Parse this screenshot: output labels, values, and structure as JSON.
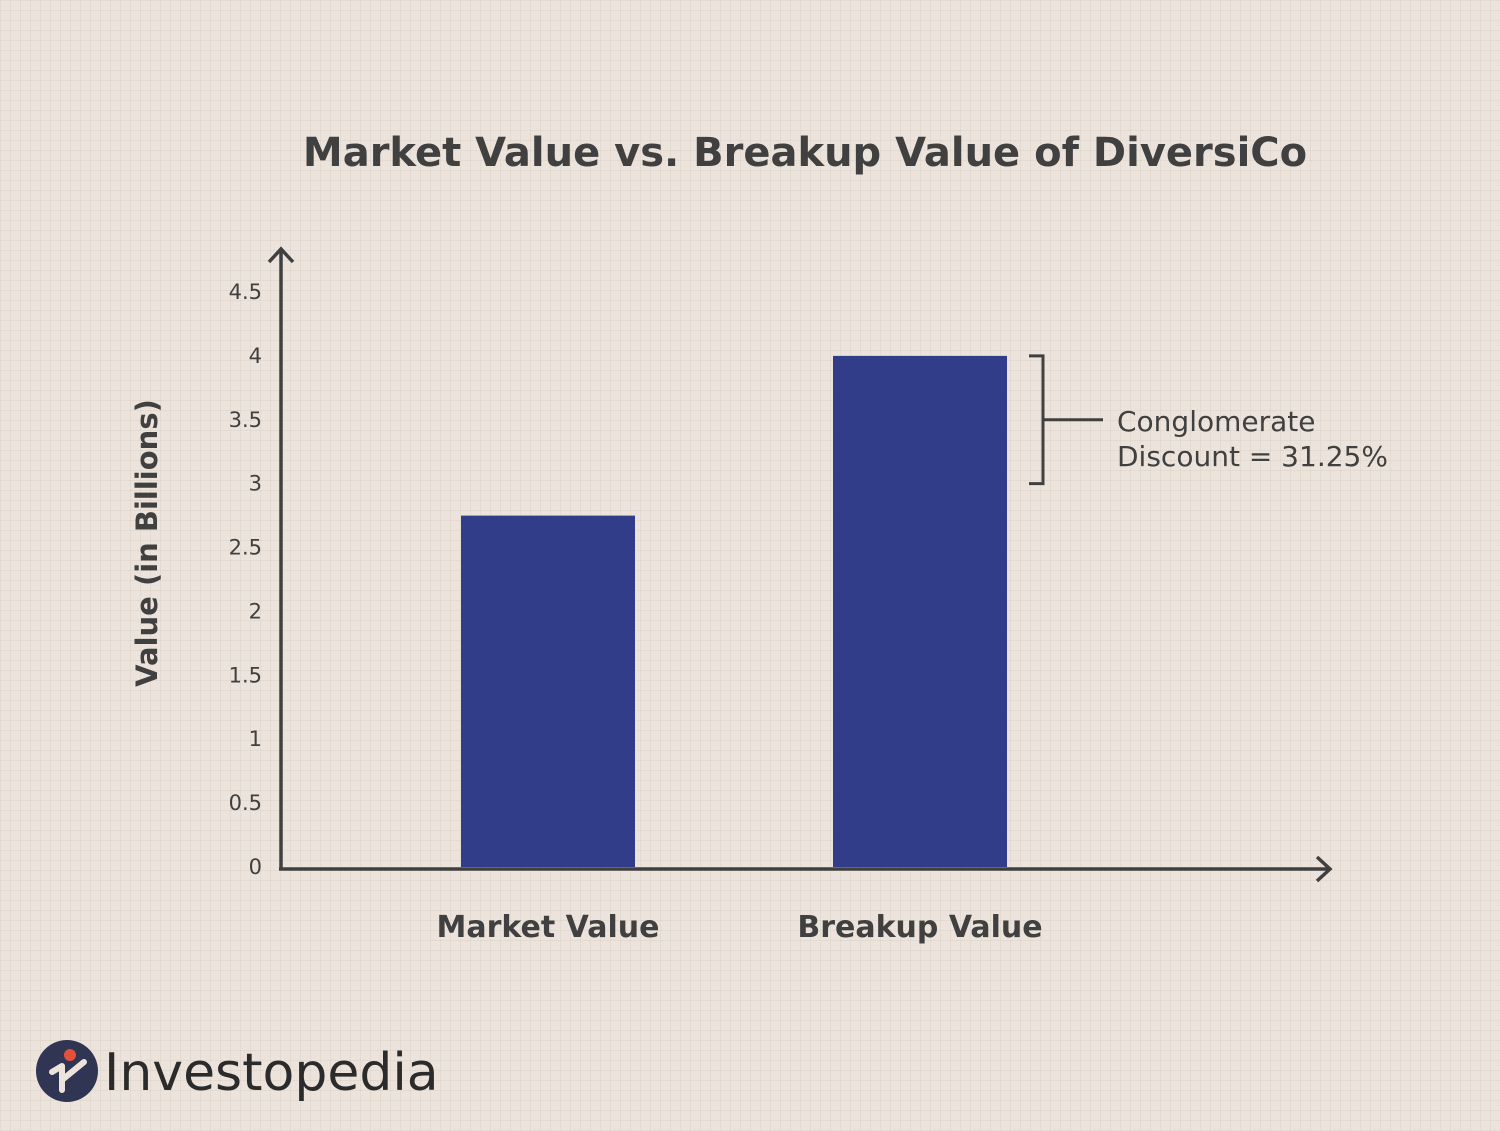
{
  "chart_data": {
    "type": "bar",
    "title": "Market Value vs. Breakup Value of DiversiCo",
    "xlabel": "",
    "ylabel": "Value (in Billions)",
    "categories": [
      "Market Value",
      "Breakup Value"
    ],
    "values": [
      2.75,
      4.0
    ],
    "ylim": [
      0,
      4.5
    ],
    "yticks": [
      "0",
      "0.5",
      "1",
      "1.5",
      "2",
      "2.5",
      "3",
      "3.5",
      "4",
      "4.5"
    ],
    "grid": false,
    "bar_color": "#323d8a",
    "annotation": {
      "lines": [
        "Conglomerate",
        "Discount = 31.25%"
      ],
      "from_value": 3.0,
      "to_value": 4.0
    }
  },
  "branding": {
    "logo_text": "Investopedia",
    "logo_icon": "investopedia-logo-icon",
    "accent_color": "#e4513a"
  },
  "colors": {
    "axis": "#404040",
    "text": "#404040"
  }
}
